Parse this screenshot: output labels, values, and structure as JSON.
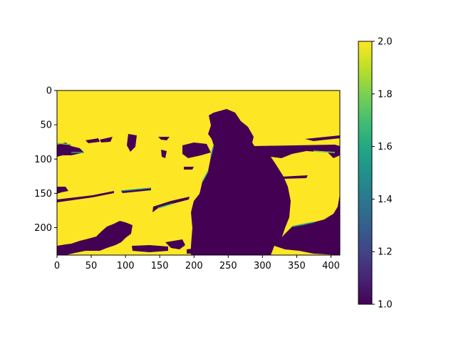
{
  "chart_data": {
    "type": "heatmap",
    "title": "",
    "xlabel": "",
    "ylabel": "",
    "colormap": "viridis",
    "colors": {
      "low": "#440154",
      "high": "#fde725"
    },
    "image_extent": {
      "width": 413,
      "height": 240
    },
    "x_ticks": [
      0,
      50,
      100,
      150,
      200,
      250,
      300,
      350,
      400
    ],
    "x_tick_labels": [
      "0",
      "50",
      "100",
      "150",
      "200",
      "250",
      "300",
      "350",
      "400"
    ],
    "y_ticks": [
      0,
      50,
      100,
      150,
      200
    ],
    "y_tick_labels": [
      "0",
      "50",
      "100",
      "150",
      "200"
    ],
    "values_present": [
      1,
      2
    ],
    "description_of_regions": {
      "background_value": 2,
      "foreground_value": 1
    },
    "colorbar": {
      "range": [
        1.0,
        2.0
      ],
      "ticks": [
        1.0,
        1.2,
        1.4,
        1.6,
        1.8,
        2.0
      ],
      "tick_labels": [
        "1.0",
        "1.2",
        "1.4",
        "1.6",
        "1.8",
        "2.0"
      ]
    }
  }
}
